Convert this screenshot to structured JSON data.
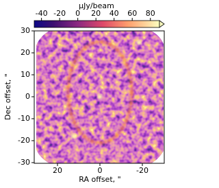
{
  "chart_data": {
    "type": "image",
    "colorbar": {
      "label": "μJy/beam",
      "clim": [
        -48,
        90
      ],
      "ticks": [
        -40,
        -20,
        0,
        20,
        40,
        60,
        80
      ]
    },
    "xlabel": "RA offset, \"",
    "ylabel": "Dec offset, \"",
    "xlim": [
      30,
      -30
    ],
    "xticks": [
      20,
      0,
      -20
    ],
    "ylim": [
      -30,
      30
    ],
    "yticks": [
      30,
      20,
      10,
      0,
      -10,
      -20,
      -30
    ],
    "ring": {
      "x": 0,
      "y": 2,
      "rx": 15,
      "ry": 23
    },
    "points": {
      "x": [
        0,
        -18.4,
        12.3
      ],
      "y": [
        0,
        24.7,
        -18
      ]
    }
  }
}
